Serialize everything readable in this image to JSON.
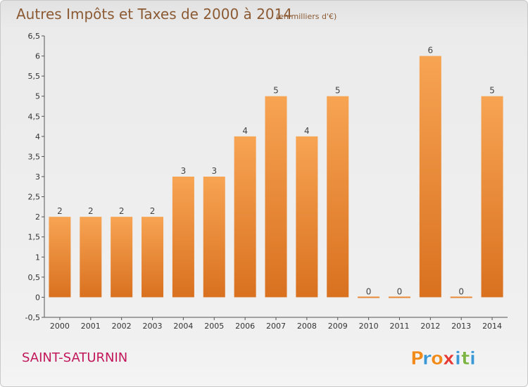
{
  "title": "Autres Impôts et Taxes de 2000 à 2014",
  "subtitle": "(en milliers d'€)",
  "place": "SAINT-SATURNIN",
  "logo": "Proxiti",
  "colors": {
    "bar_top": "#f7a453",
    "bar_bottom": "#d9711f",
    "title": "#8b5a33",
    "place": "#c2185b",
    "logo": [
      "#f08a1a",
      "#3b97d3",
      "#f08a1a",
      "#e53935",
      "#3b97d3",
      "#7cb342",
      "#3b97d3"
    ]
  },
  "chart_data": {
    "type": "bar",
    "title": "Autres Impôts et Taxes de 2000 à 2014",
    "subtitle": "(en milliers d'€)",
    "xlabel": "",
    "ylabel": "",
    "ylim": [
      -0.5,
      6.5
    ],
    "yticks": [
      "-0,5",
      "0",
      "0,5",
      "1",
      "1,5",
      "2",
      "2,5",
      "3",
      "3,5",
      "4",
      "4,5",
      "5",
      "5,5",
      "6",
      "6,5"
    ],
    "ytick_values": [
      -0.5,
      0,
      0.5,
      1,
      1.5,
      2,
      2.5,
      3,
      3.5,
      4,
      4.5,
      5,
      5.5,
      6,
      6.5
    ],
    "grid": false,
    "categories": [
      "2000",
      "2001",
      "2002",
      "2003",
      "2004",
      "2005",
      "2006",
      "2007",
      "2008",
      "2009",
      "2010",
      "2011",
      "2012",
      "2013",
      "2014"
    ],
    "values": [
      2,
      2,
      2,
      2,
      3,
      3,
      4,
      5,
      4,
      5,
      0,
      0,
      6,
      0,
      5
    ],
    "value_labels": [
      "2",
      "2",
      "2",
      "2",
      "3",
      "3",
      "4",
      "5",
      "4",
      "5",
      "0",
      "0",
      "6",
      "0",
      "5"
    ]
  }
}
